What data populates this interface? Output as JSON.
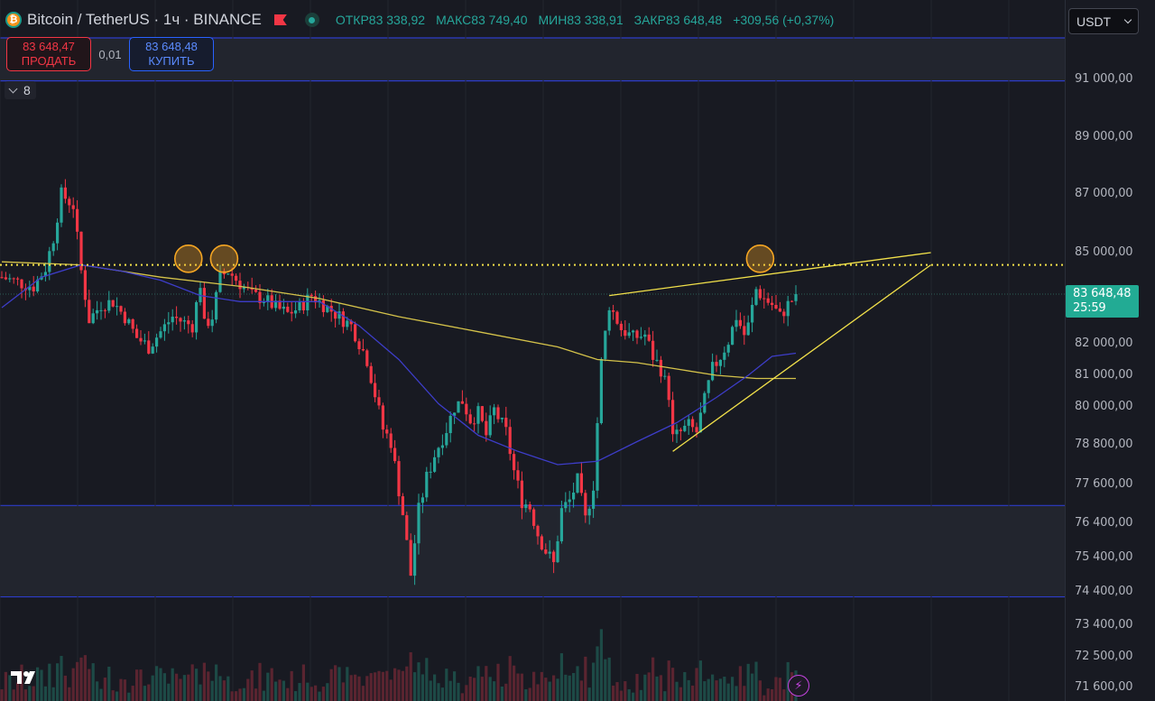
{
  "header": {
    "symbol_title": "Bitcoin / TetherUS · 1ч · BINANCE",
    "logo_glyph": "₿",
    "ohlc": [
      {
        "label": "ОТКР",
        "value": "83 338,92"
      },
      {
        "label": "МАКС",
        "value": "83 749,40"
      },
      {
        "label": "МИН",
        "value": "83 338,91"
      },
      {
        "label": "ЗАКР",
        "value": "83 648,48"
      }
    ],
    "change": "+309,56 (+0,37%)"
  },
  "trade": {
    "sell_price": "83 648,47",
    "sell_label": "ПРОДАТЬ",
    "spread": "0,01",
    "buy_price": "83 648,48",
    "buy_label": "КУПИТЬ"
  },
  "indicators": {
    "count": "8"
  },
  "currency": {
    "selected": "USDT"
  },
  "price_axis": {
    "ticks": [
      "91 000,00",
      "89 000,00",
      "87 000,00",
      "85 000,00",
      "82 000,00",
      "81 000,00",
      "80 000,00",
      "78 800,00",
      "77 600,00",
      "76 400,00",
      "75 400,00",
      "74 400,00",
      "73 400,00",
      "72 500,00",
      "71 600,00"
    ],
    "last_price": "83 648,48",
    "countdown": "25:59"
  },
  "colors": {
    "up": "#26a69a",
    "down": "#f23645",
    "ma_fast": "#3d3dc8",
    "ma_slow": "#d4c24a",
    "drawing": "#f2e14a",
    "marker": "#f5a623",
    "zone_line": "#2d3cc8"
  },
  "icons": {
    "flash": "flash-icon",
    "tv_logo": "tradingview-logo-icon"
  },
  "chart_data": {
    "type": "candlestick",
    "symbol": "BTCUSDT",
    "interval": "1ч",
    "ylim": [
      71600,
      92000
    ],
    "resistance_level": 84600,
    "last_price": 83648.48,
    "zones": [
      {
        "from": 90950,
        "to": 92000
      },
      {
        "from": 74250,
        "to": 76950
      }
    ],
    "price_path": [
      [
        0,
        84200
      ],
      [
        5,
        84000
      ],
      [
        8,
        83900
      ],
      [
        11,
        84500
      ],
      [
        13,
        85500
      ],
      [
        15,
        87000
      ],
      [
        18,
        86600
      ],
      [
        20,
        84400
      ],
      [
        22,
        82800
      ],
      [
        25,
        83300
      ],
      [
        28,
        83400
      ],
      [
        31,
        82900
      ],
      [
        34,
        82200
      ],
      [
        37,
        81900
      ],
      [
        40,
        82400
      ],
      [
        43,
        82900
      ],
      [
        46,
        82700
      ],
      [
        48,
        82600
      ],
      [
        50,
        84000
      ],
      [
        51,
        82600
      ],
      [
        53,
        82900
      ],
      [
        55,
        84200
      ],
      [
        57,
        84400
      ],
      [
        60,
        84000
      ],
      [
        63,
        83600
      ],
      [
        66,
        83500
      ],
      [
        69,
        83200
      ],
      [
        72,
        83000
      ],
      [
        75,
        83200
      ],
      [
        78,
        83600
      ],
      [
        82,
        83200
      ],
      [
        85,
        82900
      ],
      [
        88,
        82600
      ],
      [
        92,
        81500
      ],
      [
        96,
        79300
      ],
      [
        98,
        78900
      ],
      [
        101,
        76700
      ],
      [
        103,
        74900
      ],
      [
        105,
        76800
      ],
      [
        107,
        77800
      ],
      [
        109,
        78500
      ],
      [
        112,
        79300
      ],
      [
        114,
        80000
      ],
      [
        116,
        80200
      ],
      [
        118,
        79600
      ],
      [
        120,
        79800
      ],
      [
        122,
        79100
      ],
      [
        124,
        79900
      ],
      [
        127,
        79200
      ],
      [
        129,
        78000
      ],
      [
        131,
        77100
      ],
      [
        133,
        76900
      ],
      [
        135,
        76100
      ],
      [
        137,
        75600
      ],
      [
        139,
        75200
      ],
      [
        141,
        76800
      ],
      [
        143,
        77100
      ],
      [
        145,
        77700
      ],
      [
        147,
        76500
      ],
      [
        149,
        77600
      ],
      [
        151,
        81400
      ],
      [
        153,
        83300
      ],
      [
        156,
        82500
      ],
      [
        159,
        82200
      ],
      [
        162,
        82300
      ],
      [
        164,
        81600
      ],
      [
        166,
        81200
      ],
      [
        168,
        80400
      ],
      [
        169,
        79000
      ],
      [
        171,
        79200
      ],
      [
        173,
        79400
      ],
      [
        175,
        79200
      ],
      [
        177,
        80200
      ],
      [
        179,
        81200
      ],
      [
        181,
        81600
      ],
      [
        183,
        82100
      ],
      [
        185,
        82900
      ],
      [
        187,
        82300
      ],
      [
        188,
        82600
      ],
      [
        190,
        83800
      ],
      [
        192,
        83500
      ],
      [
        194,
        83300
      ],
      [
        196,
        82900
      ],
      [
        198,
        83300
      ],
      [
        200,
        83600
      ]
    ],
    "ma_fast": [
      [
        0,
        83200
      ],
      [
        10,
        84200
      ],
      [
        20,
        84600
      ],
      [
        30,
        84400
      ],
      [
        40,
        84100
      ],
      [
        50,
        83600
      ],
      [
        60,
        83400
      ],
      [
        70,
        83400
      ],
      [
        80,
        83400
      ],
      [
        90,
        82600
      ],
      [
        100,
        81500
      ],
      [
        110,
        80100
      ],
      [
        120,
        79100
      ],
      [
        130,
        78600
      ],
      [
        140,
        78200
      ],
      [
        150,
        78300
      ],
      [
        160,
        78900
      ],
      [
        170,
        79500
      ],
      [
        180,
        80300
      ],
      [
        188,
        81000
      ],
      [
        194,
        81600
      ],
      [
        200,
        81700
      ]
    ],
    "ma_slow": [
      [
        0,
        84700
      ],
      [
        20,
        84600
      ],
      [
        40,
        84200
      ],
      [
        60,
        83900
      ],
      [
        80,
        83500
      ],
      [
        100,
        82900
      ],
      [
        120,
        82400
      ],
      [
        140,
        81900
      ],
      [
        150,
        81500
      ],
      [
        160,
        81400
      ],
      [
        170,
        81200
      ],
      [
        180,
        81000
      ],
      [
        190,
        80900
      ],
      [
        200,
        80900
      ]
    ],
    "circle_markers": [
      {
        "index": 47,
        "price": 84800
      },
      {
        "index": 56,
        "price": 84800
      },
      {
        "index": 191,
        "price": 84800
      }
    ],
    "trendlines": [
      {
        "from": [
          153,
          83600
        ],
        "to": [
          234,
          85000
        ]
      },
      {
        "from": [
          169,
          78600
        ],
        "to": [
          234,
          84600
        ]
      }
    ]
  }
}
